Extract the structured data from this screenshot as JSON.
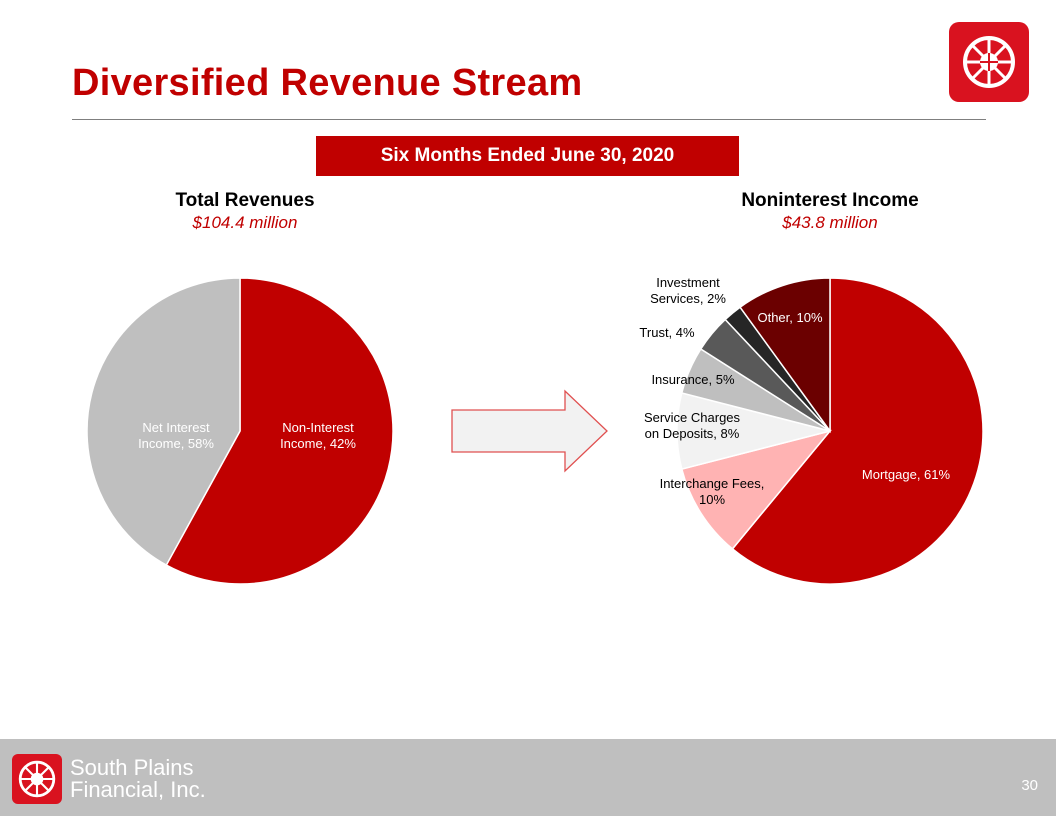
{
  "slide": {
    "title": "Diversified Revenue Stream",
    "period": "Six Months Ended June 30, 2020",
    "page_number": "30"
  },
  "footer": {
    "company_name_line1": "South Plains",
    "company_name_line2": "Financial, Inc."
  },
  "colors": {
    "brand_red": "#c00000",
    "logo_red": "#d9121f",
    "footer_gray": "#bfbfbf"
  },
  "chart_data": [
    {
      "type": "pie",
      "title": "Total Revenues",
      "subtitle": "$104.4 million",
      "slices": [
        {
          "label": "Net Interest Income, 58%",
          "value": 58,
          "color": "#c00000",
          "text_color": "#ffffff"
        },
        {
          "label": "Non-Interest Income, 42%",
          "value": 42,
          "color": "#bfbfbf",
          "text_color": "#ffffff"
        }
      ]
    },
    {
      "type": "pie",
      "title": "Noninterest Income",
      "subtitle": "$43.8 million",
      "slices": [
        {
          "label": "Mortgage, 61%",
          "value": 61,
          "color": "#c00000",
          "text_color": "#ffffff"
        },
        {
          "label": "Interchange Fees, 10%",
          "value": 10,
          "color": "#ffb3b3",
          "text_color": "#000000"
        },
        {
          "label": "Service Charges on Deposits, 8%",
          "value": 8,
          "color": "#f2f2f2",
          "text_color": "#000000"
        },
        {
          "label": "Insurance, 5%",
          "value": 5,
          "color": "#bfbfbf",
          "text_color": "#000000"
        },
        {
          "label": "Trust, 4%",
          "value": 4,
          "color": "#595959",
          "text_color": "#000000"
        },
        {
          "label": "Investment Services, 2%",
          "value": 2,
          "color": "#262626",
          "text_color": "#000000"
        },
        {
          "label": "Other, 10%",
          "value": 10,
          "color": "#6b0000",
          "text_color": "#ffffff"
        }
      ]
    }
  ]
}
